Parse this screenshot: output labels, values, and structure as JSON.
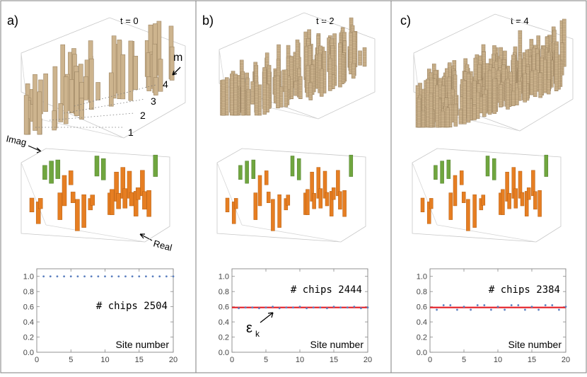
{
  "panels": [
    {
      "id": "a",
      "label": "a)",
      "time": "t = 0",
      "chips_label": "# chips 2504",
      "axis_labels": {
        "m": "m",
        "imag": "Imag",
        "real": "Real",
        "m_ticks": [
          "1",
          "2",
          "3",
          "4"
        ]
      },
      "plot": {
        "xlabel": "Site number",
        "values": [
          1.0,
          1.0,
          1.0,
          1.0,
          1.0,
          1.0,
          1.0,
          1.0,
          1.0,
          1.0,
          1.0,
          1.0,
          1.0,
          1.0,
          1.0,
          1.0,
          1.0,
          1.0,
          1.0,
          1.0
        ],
        "epsilon": null
      }
    },
    {
      "id": "b",
      "label": "b)",
      "time": "t = 2",
      "chips_label": "# chips 2444",
      "axis_labels": null,
      "plot": {
        "xlabel": "Site number",
        "values": [
          0.58,
          0.59,
          0.59,
          0.58,
          0.59,
          0.6,
          0.58,
          0.59,
          0.59,
          0.6,
          0.58,
          0.59,
          0.59,
          0.58,
          0.6,
          0.59,
          0.59,
          0.6,
          0.58,
          0.59
        ],
        "epsilon": 0.59,
        "epsilon_label": "ε",
        "epsilon_sub": "k"
      }
    },
    {
      "id": "c",
      "label": "c)",
      "time": "t = 4",
      "chips_label": "# chips 2384",
      "axis_labels": null,
      "plot": {
        "xlabel": "Site number",
        "values": [
          0.56,
          0.62,
          0.62,
          0.56,
          0.6,
          0.56,
          0.62,
          0.62,
          0.56,
          0.6,
          0.56,
          0.62,
          0.62,
          0.56,
          0.6,
          0.56,
          0.62,
          0.62,
          0.56,
          0.6
        ],
        "epsilon": 0.59
      }
    }
  ],
  "plot_axes": {
    "yticks": [
      "0.0",
      "0.2",
      "0.4",
      "0.6",
      "0.8",
      "1.0"
    ],
    "xticks": [
      "0",
      "5",
      "10",
      "15",
      "20"
    ],
    "ylim": [
      0,
      1.1
    ],
    "xlim": [
      0,
      20
    ]
  },
  "colors": {
    "chip": "#cdb48e",
    "chip_dark": "#9d8563",
    "imag": "#70a63f",
    "real": "#e67e22",
    "line": "#e41e26",
    "dot": "#5b7fbf",
    "divider": "#7f7f7f"
  }
}
